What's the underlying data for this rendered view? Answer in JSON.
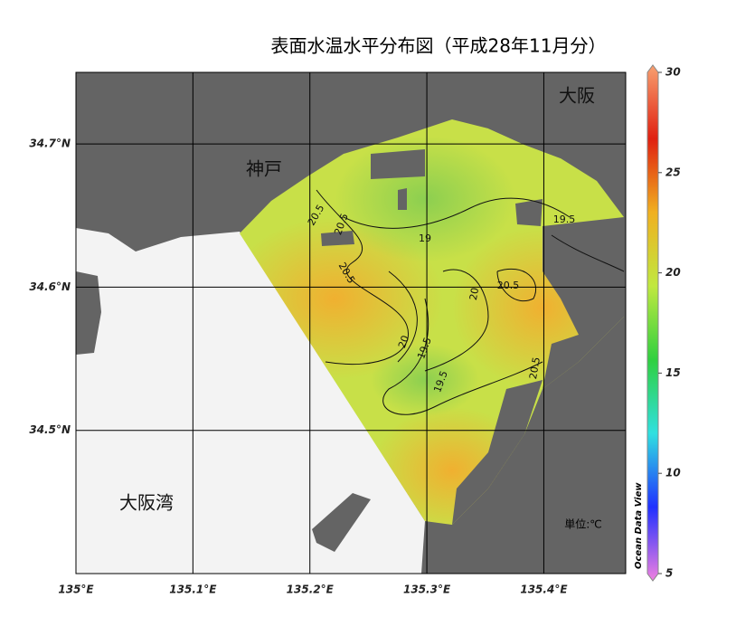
{
  "chart_data": {
    "type": "map",
    "title": "表面水温水平分布図（平成28年11月分）",
    "xlim": [
      135,
      135.47
    ],
    "ylim": [
      34.4,
      34.75
    ],
    "xticks": [
      {
        "value": 135,
        "label": "135°E"
      },
      {
        "value": 135.1,
        "label": "135.1°E"
      },
      {
        "value": 135.2,
        "label": "135.2°E"
      },
      {
        "value": 135.3,
        "label": "135.3°E"
      },
      {
        "value": 135.4,
        "label": "135.4°E"
      }
    ],
    "yticks": [
      {
        "value": 34.5,
        "label": "34.5°N"
      },
      {
        "value": 34.6,
        "label": "34.6°N"
      },
      {
        "value": 34.7,
        "label": "34.7°N"
      }
    ],
    "grid": true,
    "places": [
      "大阪",
      "神戸",
      "大阪湾"
    ],
    "unit": "単位:℃",
    "contour_labels": [
      20.5,
      20.5,
      20.5,
      19,
      20,
      20.5,
      19.5,
      20,
      19.5,
      19.5,
      20.5
    ],
    "colorbar": {
      "lim": [
        5,
        30
      ],
      "ticks": [
        5,
        10,
        15,
        20,
        25,
        30
      ],
      "colors": [
        "#f080e0",
        "#2030ff",
        "#30e0e0",
        "#30d040",
        "#c0e840",
        "#f0b020",
        "#e02010",
        "#f8a070"
      ],
      "label": "Ocean Data View"
    }
  }
}
